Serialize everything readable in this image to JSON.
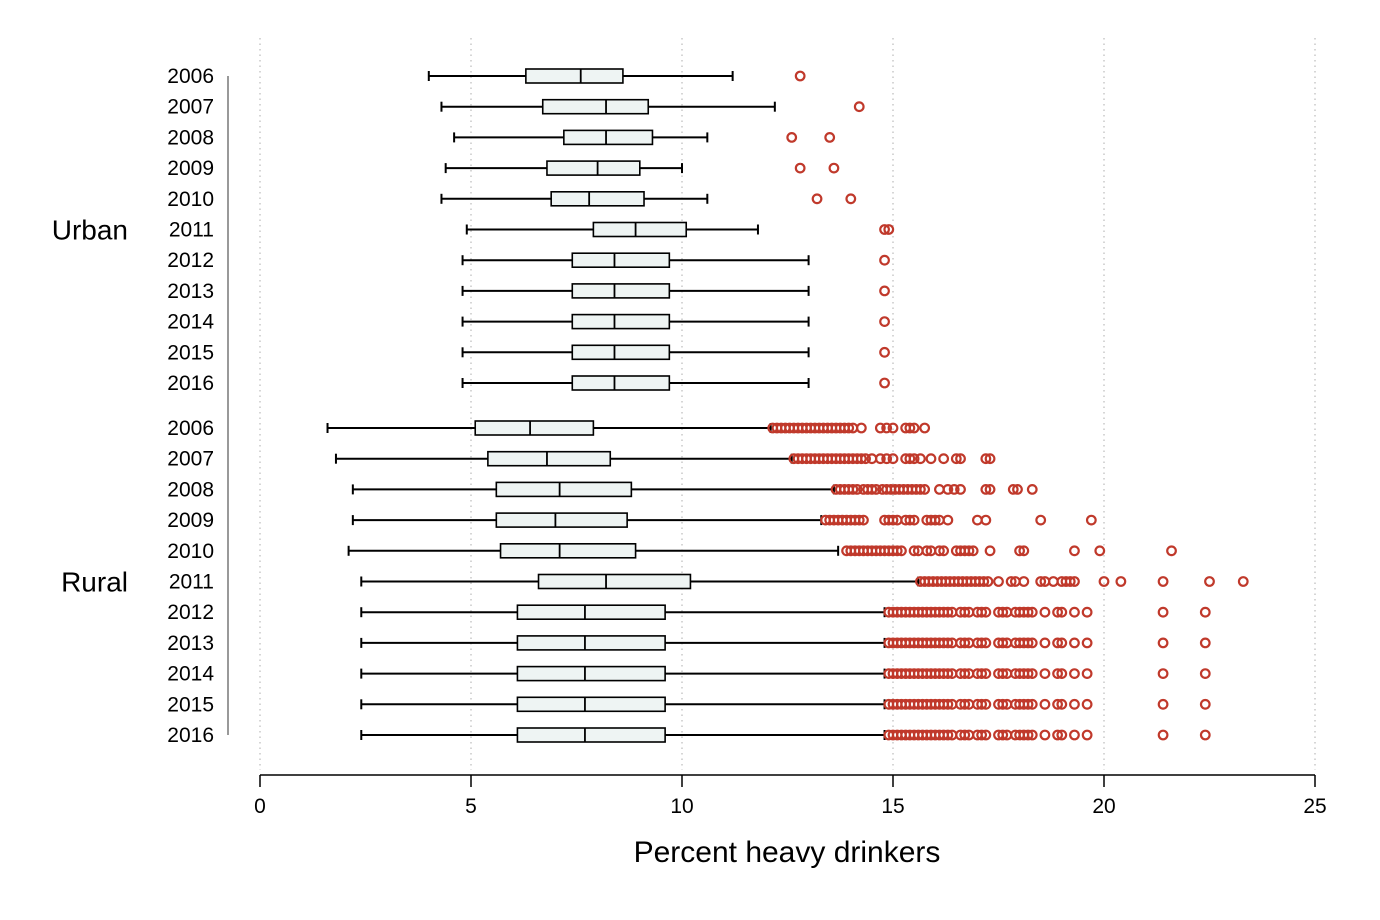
{
  "chart_data": {
    "type": "boxplot-horizontal",
    "xlabel": "Percent heavy drinkers",
    "xlim": [
      0,
      25
    ],
    "xticks": [
      0,
      5,
      10,
      15,
      20,
      25
    ],
    "grid": "vertical dotted",
    "colors": {
      "box_fill": "#eef4f3",
      "stroke": "#000000",
      "outlier": "#c0392b",
      "grid": "#bbbbbb"
    },
    "groups": [
      {
        "name": "Urban",
        "rows": [
          {
            "year": "2006",
            "whisker_low": 4.0,
            "q1": 6.3,
            "median": 7.6,
            "q3": 8.6,
            "whisker_high": 11.2,
            "outliers": [
              12.8
            ]
          },
          {
            "year": "2007",
            "whisker_low": 4.3,
            "q1": 6.7,
            "median": 8.2,
            "q3": 9.2,
            "whisker_high": 12.2,
            "outliers": [
              14.2
            ]
          },
          {
            "year": "2008",
            "whisker_low": 4.6,
            "q1": 7.2,
            "median": 8.2,
            "q3": 9.3,
            "whisker_high": 10.6,
            "outliers": [
              12.6,
              13.5
            ]
          },
          {
            "year": "2009",
            "whisker_low": 4.4,
            "q1": 6.8,
            "median": 8.0,
            "q3": 9.0,
            "whisker_high": 10.0,
            "outliers": [
              12.8,
              13.6
            ]
          },
          {
            "year": "2010",
            "whisker_low": 4.3,
            "q1": 6.9,
            "median": 7.8,
            "q3": 9.1,
            "whisker_high": 10.6,
            "outliers": [
              13.2,
              14.0
            ]
          },
          {
            "year": "2011",
            "whisker_low": 4.9,
            "q1": 7.9,
            "median": 8.9,
            "q3": 10.1,
            "whisker_high": 11.8,
            "outliers": [
              14.8,
              14.9
            ]
          },
          {
            "year": "2012",
            "whisker_low": 4.8,
            "q1": 7.4,
            "median": 8.4,
            "q3": 9.7,
            "whisker_high": 13.0,
            "outliers": [
              14.8
            ]
          },
          {
            "year": "2013",
            "whisker_low": 4.8,
            "q1": 7.4,
            "median": 8.4,
            "q3": 9.7,
            "whisker_high": 13.0,
            "outliers": [
              14.8
            ]
          },
          {
            "year": "2014",
            "whisker_low": 4.8,
            "q1": 7.4,
            "median": 8.4,
            "q3": 9.7,
            "whisker_high": 13.0,
            "outliers": [
              14.8
            ]
          },
          {
            "year": "2015",
            "whisker_low": 4.8,
            "q1": 7.4,
            "median": 8.4,
            "q3": 9.7,
            "whisker_high": 13.0,
            "outliers": [
              14.8
            ]
          },
          {
            "year": "2016",
            "whisker_low": 4.8,
            "q1": 7.4,
            "median": 8.4,
            "q3": 9.7,
            "whisker_high": 13.0,
            "outliers": [
              14.8
            ]
          }
        ]
      },
      {
        "name": "Rural",
        "rows": [
          {
            "year": "2006",
            "whisker_low": 1.6,
            "q1": 5.1,
            "median": 6.4,
            "q3": 7.9,
            "whisker_high": 12.1,
            "outliers": [
              12.15,
              12.25,
              12.35,
              12.45,
              12.55,
              12.65,
              12.75,
              12.85,
              12.95,
              13.05,
              13.15,
              13.25,
              13.35,
              13.45,
              13.55,
              13.65,
              13.75,
              13.85,
              13.95,
              14.05,
              14.25,
              14.7,
              14.85,
              15.0,
              15.3,
              15.4,
              15.5,
              15.75
            ]
          },
          {
            "year": "2007",
            "whisker_low": 1.8,
            "q1": 5.4,
            "median": 6.8,
            "q3": 8.3,
            "whisker_high": 12.6,
            "outliers": [
              12.65,
              12.75,
              12.85,
              12.95,
              13.05,
              13.15,
              13.25,
              13.35,
              13.45,
              13.55,
              13.65,
              13.75,
              13.85,
              13.95,
              14.05,
              14.15,
              14.25,
              14.35,
              14.5,
              14.7,
              14.85,
              15.0,
              15.3,
              15.4,
              15.5,
              15.65,
              15.9,
              16.2,
              16.5,
              16.6,
              17.2,
              17.3
            ]
          },
          {
            "year": "2008",
            "whisker_low": 2.2,
            "q1": 5.6,
            "median": 7.1,
            "q3": 8.8,
            "whisker_high": 13.6,
            "outliers": [
              13.65,
              13.75,
              13.85,
              13.95,
              14.05,
              14.15,
              14.3,
              14.4,
              14.5,
              14.6,
              14.75,
              14.85,
              14.95,
              15.05,
              15.15,
              15.25,
              15.35,
              15.45,
              15.55,
              15.65,
              15.75,
              16.1,
              16.3,
              16.45,
              16.6,
              17.2,
              17.3,
              17.85,
              17.95,
              18.3
            ]
          },
          {
            "year": "2009",
            "whisker_low": 2.2,
            "q1": 5.6,
            "median": 7.0,
            "q3": 8.7,
            "whisker_high": 13.3,
            "outliers": [
              13.4,
              13.5,
              13.6,
              13.7,
              13.8,
              13.9,
              14.0,
              14.1,
              14.2,
              14.3,
              14.8,
              14.9,
              15.0,
              15.1,
              15.3,
              15.4,
              15.5,
              15.8,
              15.9,
              16.0,
              16.1,
              16.3,
              17.0,
              17.2,
              18.5,
              19.7
            ]
          },
          {
            "year": "2010",
            "whisker_low": 2.1,
            "q1": 5.7,
            "median": 7.1,
            "q3": 8.9,
            "whisker_high": 13.7,
            "outliers": [
              13.9,
              14.0,
              14.1,
              14.2,
              14.3,
              14.4,
              14.5,
              14.6,
              14.7,
              14.8,
              14.9,
              15.0,
              15.1,
              15.2,
              15.5,
              15.6,
              15.8,
              15.9,
              16.1,
              16.2,
              16.5,
              16.6,
              16.7,
              16.8,
              16.9,
              17.3,
              18.0,
              18.1,
              19.3,
              19.9,
              21.6
            ]
          },
          {
            "year": "2011",
            "whisker_low": 2.4,
            "q1": 6.6,
            "median": 8.2,
            "q3": 10.2,
            "whisker_high": 15.6,
            "outliers": [
              15.65,
              15.75,
              15.85,
              15.95,
              16.05,
              16.15,
              16.25,
              16.35,
              16.45,
              16.55,
              16.65,
              16.75,
              16.85,
              16.95,
              17.05,
              17.15,
              17.25,
              17.5,
              17.8,
              17.9,
              18.1,
              18.5,
              18.6,
              18.8,
              19.0,
              19.1,
              19.2,
              19.3,
              20.0,
              20.4,
              21.4,
              22.5,
              23.3
            ]
          },
          {
            "year": "2012",
            "whisker_low": 2.4,
            "q1": 6.1,
            "median": 7.7,
            "q3": 9.6,
            "whisker_high": 14.8,
            "outliers": [
              14.9,
              15.0,
              15.1,
              15.2,
              15.3,
              15.4,
              15.5,
              15.6,
              15.7,
              15.8,
              15.9,
              16.0,
              16.1,
              16.2,
              16.3,
              16.4,
              16.6,
              16.7,
              16.8,
              17.0,
              17.1,
              17.2,
              17.5,
              17.6,
              17.7,
              17.9,
              18.0,
              18.1,
              18.2,
              18.3,
              18.6,
              18.9,
              19.0,
              19.3,
              19.6,
              21.4,
              22.4
            ]
          },
          {
            "year": "2013",
            "whisker_low": 2.4,
            "q1": 6.1,
            "median": 7.7,
            "q3": 9.6,
            "whisker_high": 14.8,
            "outliers": [
              14.9,
              15.0,
              15.1,
              15.2,
              15.3,
              15.4,
              15.5,
              15.6,
              15.7,
              15.8,
              15.9,
              16.0,
              16.1,
              16.2,
              16.3,
              16.4,
              16.6,
              16.7,
              16.8,
              17.0,
              17.1,
              17.2,
              17.5,
              17.6,
              17.7,
              17.9,
              18.0,
              18.1,
              18.2,
              18.3,
              18.6,
              18.9,
              19.0,
              19.3,
              19.6,
              21.4,
              22.4
            ]
          },
          {
            "year": "2014",
            "whisker_low": 2.4,
            "q1": 6.1,
            "median": 7.7,
            "q3": 9.6,
            "whisker_high": 14.8,
            "outliers": [
              14.9,
              15.0,
              15.1,
              15.2,
              15.3,
              15.4,
              15.5,
              15.6,
              15.7,
              15.8,
              15.9,
              16.0,
              16.1,
              16.2,
              16.3,
              16.4,
              16.6,
              16.7,
              16.8,
              17.0,
              17.1,
              17.2,
              17.5,
              17.6,
              17.7,
              17.9,
              18.0,
              18.1,
              18.2,
              18.3,
              18.6,
              18.9,
              19.0,
              19.3,
              19.6,
              21.4,
              22.4
            ]
          },
          {
            "year": "2015",
            "whisker_low": 2.4,
            "q1": 6.1,
            "median": 7.7,
            "q3": 9.6,
            "whisker_high": 14.8,
            "outliers": [
              14.9,
              15.0,
              15.1,
              15.2,
              15.3,
              15.4,
              15.5,
              15.6,
              15.7,
              15.8,
              15.9,
              16.0,
              16.1,
              16.2,
              16.3,
              16.4,
              16.6,
              16.7,
              16.8,
              17.0,
              17.1,
              17.2,
              17.5,
              17.6,
              17.7,
              17.9,
              18.0,
              18.1,
              18.2,
              18.3,
              18.6,
              18.9,
              19.0,
              19.3,
              19.6,
              21.4,
              22.4
            ]
          },
          {
            "year": "2016",
            "whisker_low": 2.4,
            "q1": 6.1,
            "median": 7.7,
            "q3": 9.6,
            "whisker_high": 14.8,
            "outliers": [
              14.9,
              15.0,
              15.1,
              15.2,
              15.3,
              15.4,
              15.5,
              15.6,
              15.7,
              15.8,
              15.9,
              16.0,
              16.1,
              16.2,
              16.3,
              16.4,
              16.6,
              16.7,
              16.8,
              17.0,
              17.1,
              17.2,
              17.5,
              17.6,
              17.7,
              17.9,
              18.0,
              18.1,
              18.2,
              18.3,
              18.6,
              18.9,
              19.0,
              19.3,
              19.6,
              21.4,
              22.4
            ]
          }
        ]
      }
    ]
  }
}
